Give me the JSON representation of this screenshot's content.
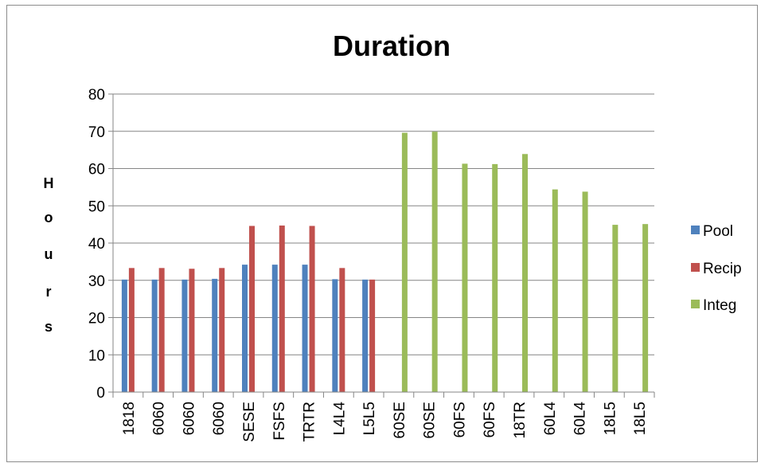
{
  "chart_data": {
    "type": "bar",
    "title": "Duration",
    "xlabel": "",
    "ylabel": "Hours",
    "ylim": [
      0,
      80
    ],
    "yticks": [
      0,
      10,
      20,
      30,
      40,
      50,
      60,
      70,
      80
    ],
    "grid": true,
    "legend_position": "right",
    "categories": [
      "1818",
      "6060",
      "6060",
      "6060",
      "SESE",
      "FSFS",
      "TRTR",
      "L4L4",
      "L5L5",
      "60SE",
      "60SE",
      "60FS",
      "60FS",
      "18TR",
      "60L4",
      "60L4",
      "18L5",
      "18L5"
    ],
    "series": [
      {
        "name": "Pool",
        "color": "#4f81bd",
        "values": [
          30.2,
          30.2,
          30.2,
          30.4,
          34.2,
          34.2,
          34.2,
          30.3,
          30.2,
          null,
          null,
          null,
          null,
          null,
          null,
          null,
          null,
          null
        ]
      },
      {
        "name": "Recip",
        "color": "#c0504d",
        "values": [
          33.3,
          33.3,
          33.1,
          33.3,
          44.6,
          44.7,
          44.6,
          33.3,
          30.2,
          null,
          null,
          null,
          null,
          null,
          null,
          null,
          null,
          null
        ]
      },
      {
        "name": "Integ",
        "color": "#9bbb59",
        "values": [
          null,
          null,
          null,
          null,
          null,
          null,
          null,
          null,
          null,
          69.6,
          69.9,
          61.3,
          61.2,
          63.9,
          54.4,
          53.8,
          44.9,
          45.1
        ]
      }
    ]
  }
}
